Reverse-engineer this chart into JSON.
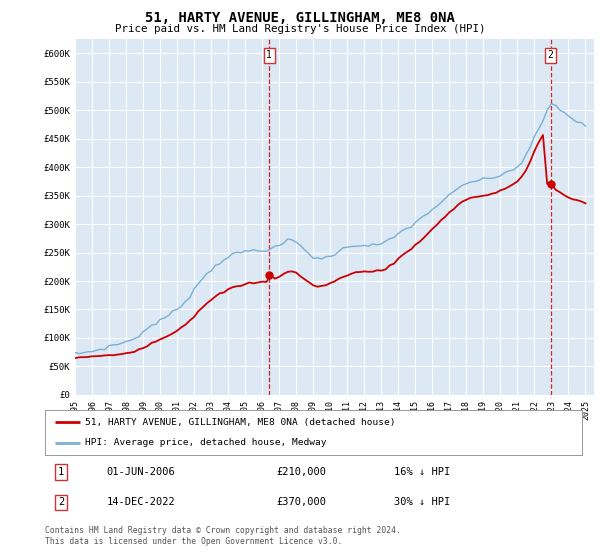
{
  "title": "51, HARTY AVENUE, GILLINGHAM, ME8 0NA",
  "subtitle": "Price paid vs. HM Land Registry's House Price Index (HPI)",
  "ylim": [
    0,
    620000
  ],
  "xlim_start": 1995.0,
  "xlim_end": 2025.5,
  "plot_bg_color": "#dce9f5",
  "grid_color": "#ffffff",
  "sale1_date_x": 2006.417,
  "sale1_price": 210000,
  "sale2_date_x": 2022.958,
  "sale2_price": 370000,
  "legend_label_red": "51, HARTY AVENUE, GILLINGHAM, ME8 0NA (detached house)",
  "legend_label_blue": "HPI: Average price, detached house, Medway",
  "annotation1_date": "01-JUN-2006",
  "annotation1_price": "£210,000",
  "annotation1_hpi": "16% ↓ HPI",
  "annotation2_date": "14-DEC-2022",
  "annotation2_price": "£370,000",
  "annotation2_hpi": "30% ↓ HPI",
  "footnote": "Contains HM Land Registry data © Crown copyright and database right 2024.\nThis data is licensed under the Open Government Licence v3.0.",
  "red_line_color": "#cc0000",
  "blue_line_color": "#7bafd4",
  "dashed_line_color": "#cc0000",
  "box_color": "#cc3333",
  "years_hpi": [
    1995,
    1995.25,
    1995.5,
    1995.75,
    1996,
    1996.25,
    1996.5,
    1996.75,
    1997,
    1997.25,
    1997.5,
    1997.75,
    1998,
    1998.25,
    1998.5,
    1998.75,
    1999,
    1999.25,
    1999.5,
    1999.75,
    2000,
    2000.25,
    2000.5,
    2000.75,
    2001,
    2001.25,
    2001.5,
    2001.75,
    2002,
    2002.25,
    2002.5,
    2002.75,
    2003,
    2003.25,
    2003.5,
    2003.75,
    2004,
    2004.25,
    2004.5,
    2004.75,
    2005,
    2005.25,
    2005.5,
    2005.75,
    2006,
    2006.25,
    2006.5,
    2006.75,
    2007,
    2007.25,
    2007.5,
    2007.75,
    2008,
    2008.25,
    2008.5,
    2008.75,
    2009,
    2009.25,
    2009.5,
    2009.75,
    2010,
    2010.25,
    2010.5,
    2010.75,
    2011,
    2011.25,
    2011.5,
    2011.75,
    2012,
    2012.25,
    2012.5,
    2012.75,
    2013,
    2013.25,
    2013.5,
    2013.75,
    2014,
    2014.25,
    2014.5,
    2014.75,
    2015,
    2015.25,
    2015.5,
    2015.75,
    2016,
    2016.25,
    2016.5,
    2016.75,
    2017,
    2017.25,
    2017.5,
    2017.75,
    2018,
    2018.25,
    2018.5,
    2018.75,
    2019,
    2019.25,
    2019.5,
    2019.75,
    2020,
    2020.25,
    2020.5,
    2020.75,
    2021,
    2021.25,
    2021.5,
    2021.75,
    2022,
    2022.25,
    2022.5,
    2022.75,
    2023,
    2023.25,
    2023.5,
    2023.75,
    2024,
    2024.25,
    2024.5,
    2024.75,
    2025
  ],
  "hpi_values": [
    72000,
    73000,
    74000,
    75000,
    77000,
    78000,
    80000,
    82000,
    85000,
    87000,
    89000,
    91000,
    93000,
    96000,
    99000,
    104000,
    110000,
    116000,
    122000,
    126000,
    130000,
    135000,
    140000,
    145000,
    150000,
    158000,
    165000,
    174000,
    185000,
    196000,
    205000,
    212000,
    220000,
    227000,
    233000,
    238000,
    243000,
    246000,
    248000,
    250000,
    252000,
    253000,
    254000,
    254000,
    255000,
    255000,
    256000,
    258000,
    262000,
    267000,
    271000,
    272000,
    268000,
    262000,
    255000,
    248000,
    242000,
    240000,
    239000,
    241000,
    244000,
    248000,
    252000,
    256000,
    260000,
    262000,
    263000,
    263000,
    263000,
    263000,
    263000,
    264000,
    265000,
    268000,
    272000,
    277000,
    283000,
    288000,
    293000,
    297000,
    302000,
    308000,
    314000,
    320000,
    326000,
    332000,
    338000,
    343000,
    350000,
    356000,
    362000,
    367000,
    371000,
    374000,
    376000,
    377000,
    378000,
    379000,
    381000,
    383000,
    386000,
    390000,
    393000,
    397000,
    400000,
    408000,
    420000,
    435000,
    452000,
    468000,
    482000,
    500000,
    510000,
    508000,
    502000,
    496000,
    490000,
    485000,
    480000,
    476000,
    473000
  ],
  "red_values": [
    65000,
    65500,
    66000,
    66500,
    67000,
    67500,
    68000,
    68500,
    69500,
    70000,
    71000,
    72000,
    73000,
    75000,
    77000,
    80000,
    83000,
    87000,
    91000,
    94000,
    97000,
    101000,
    105000,
    109000,
    113000,
    119000,
    124000,
    131000,
    138000,
    147000,
    155000,
    161000,
    166000,
    172000,
    177000,
    181000,
    185000,
    188000,
    190000,
    192000,
    194000,
    196000,
    197000,
    197000,
    198000,
    199000,
    210000,
    205000,
    208000,
    213000,
    216000,
    217000,
    214000,
    209000,
    203000,
    197000,
    192000,
    191000,
    191000,
    193000,
    196000,
    199000,
    203000,
    207000,
    211000,
    214000,
    215000,
    216000,
    216000,
    216000,
    217000,
    218000,
    219000,
    222000,
    226000,
    232000,
    239000,
    245000,
    251000,
    257000,
    263000,
    270000,
    277000,
    284000,
    291000,
    298000,
    306000,
    313000,
    321000,
    327000,
    334000,
    339000,
    343000,
    346000,
    348000,
    349000,
    350000,
    351000,
    353000,
    355000,
    358000,
    362000,
    366000,
    371000,
    375000,
    383000,
    395000,
    410000,
    428000,
    444000,
    457000,
    370000,
    365000,
    360000,
    355000,
    350000,
    347000,
    344000,
    342000,
    340000,
    338000
  ]
}
